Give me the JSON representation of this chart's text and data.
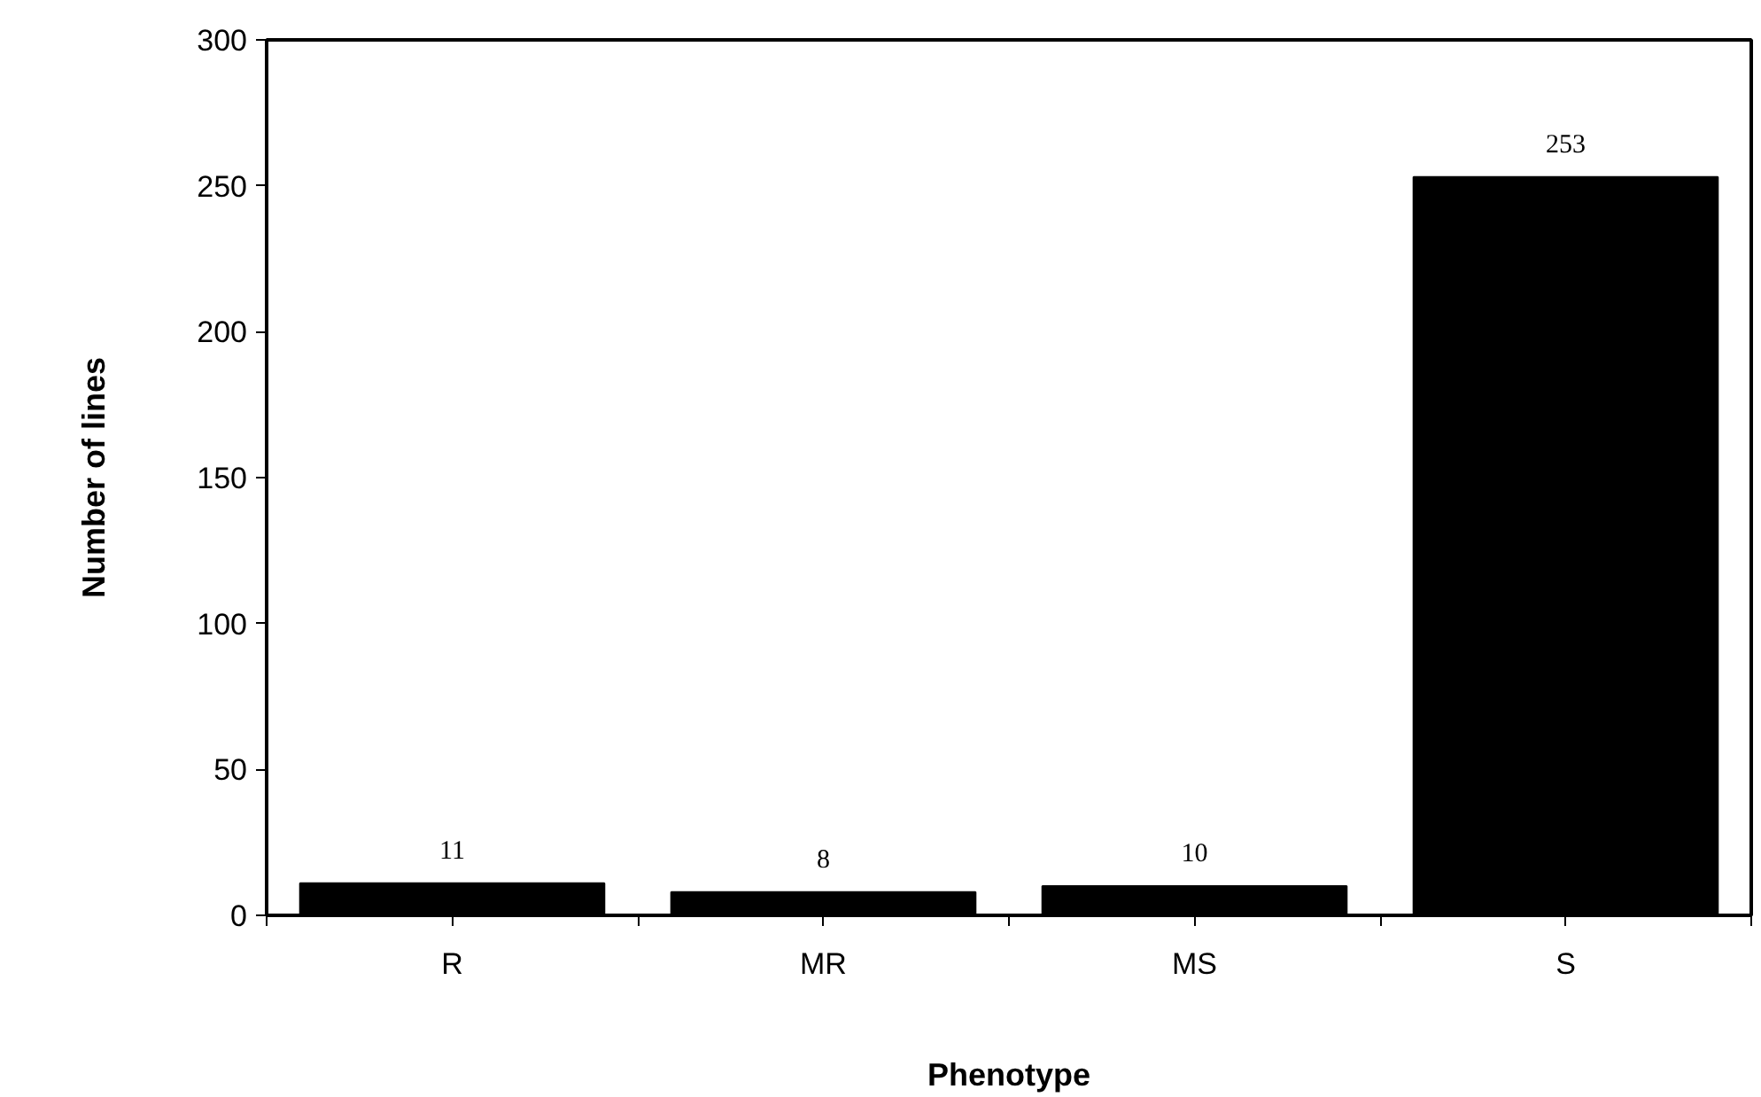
{
  "chart_data": {
    "type": "bar",
    "xlabel": "Phenotype",
    "ylabel": "Number of lines",
    "categories": [
      "R",
      "MR",
      "MS",
      "S"
    ],
    "values": [
      11,
      8,
      10,
      253
    ],
    "color": "#000000",
    "ylim": [
      0,
      300
    ],
    "yticks": [
      0,
      50,
      100,
      150,
      200,
      250,
      300
    ],
    "data_labels": true,
    "grid": false
  }
}
